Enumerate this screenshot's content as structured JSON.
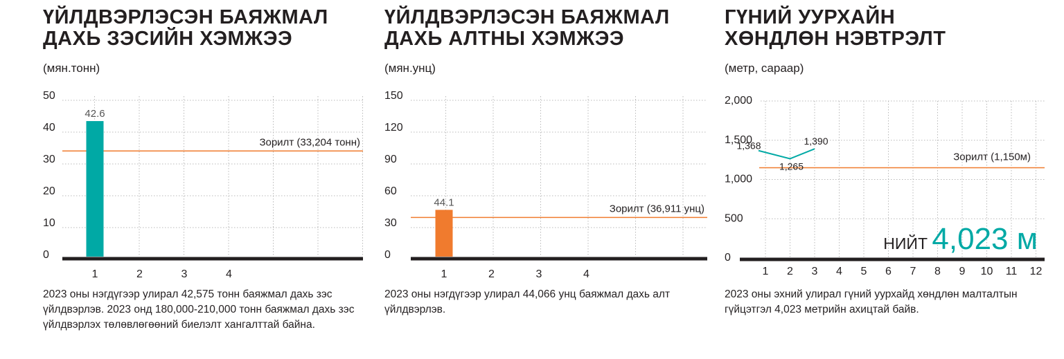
{
  "charts": [
    {
      "title_line1": "ҮЙЛДВЭРЛЭСЭН БАЯЖМАЛ",
      "title_line2": "ДАХЬ ЗЭСИЙН ХЭМЖЭЭ",
      "unit": "(мян.тонн)",
      "note": "2023 оны нэгдүгээр улирал 42,575 тонн баяжмал дахь зэс үйлдвэрлэв. 2023 онд 180,000-210,000 тонн баяжмал дахь зэс үйлдвэрлэх төлөвлөгөөний биелэлт хангалттай байна.",
      "target_label": "Зорилт (33,204 тонн)",
      "bar_label": "42.6"
    },
    {
      "title_line1": "ҮЙЛДВЭРЛЭСЭН БАЯЖМАЛ",
      "title_line2": "ДАХЬ АЛТНЫ ХЭМЖЭЭ",
      "unit": "(мян.унц)",
      "note": "2023 оны нэгдүгээр улирал 44,066 унц баяжмал дахь алт үйлдвэрлэв.",
      "target_label": "Зорилт (36,911 унц)",
      "bar_label": "44.1"
    },
    {
      "title_line1": "ГҮНИЙ УУРХАЙН",
      "title_line2": "ХӨНДЛӨН НЭВТРЭЛТ",
      "unit": "(метр, сараар)",
      "note": "2023 оны эхний улирал гүний уурхайд хөндлөн малталтын гүйцэтгэл 4,023 метрийн ахицтай байв.",
      "target_label": "Зорилт (1,150м)",
      "total_prefix": "НИЙТ",
      "total_value": "4,023 м",
      "point_labels": [
        "1,368",
        "1,265",
        "1,390"
      ]
    }
  ],
  "colors": {
    "copper_bar": "#00a9a5",
    "gold_bar": "#f07b2e",
    "target_line": "#f07b2e",
    "line_series": "#00a9a5",
    "total_text": "#00a9a5",
    "axis": "#231f20",
    "grid": "#b8b8b8"
  },
  "chart_data": [
    {
      "type": "bar",
      "categories": [
        "1",
        "2",
        "3",
        "4"
      ],
      "values": [
        42.6,
        null,
        null,
        null
      ],
      "ylim": [
        0,
        50
      ],
      "yticks": [
        "0",
        "10",
        "20",
        "30",
        "40",
        "50"
      ],
      "target": 33.204,
      "grid": true
    },
    {
      "type": "bar",
      "categories": [
        "1",
        "2",
        "3",
        "4"
      ],
      "values": [
        44.1,
        null,
        null,
        null
      ],
      "ylim": [
        0,
        150
      ],
      "yticks": [
        "0",
        "30",
        "60",
        "90",
        "120",
        "150"
      ],
      "target": 36.911,
      "grid": true
    },
    {
      "type": "line",
      "categories": [
        "1",
        "2",
        "3",
        "4",
        "5",
        "6",
        "7",
        "8",
        "9",
        "10",
        "11",
        "12"
      ],
      "values": [
        1368,
        1265,
        1390,
        null,
        null,
        null,
        null,
        null,
        null,
        null,
        null,
        null
      ],
      "ylim": [
        0,
        2000
      ],
      "yticks": [
        "0",
        "500",
        "1,000",
        "1,500",
        "2,000"
      ],
      "target": 1150,
      "grid": true
    }
  ]
}
